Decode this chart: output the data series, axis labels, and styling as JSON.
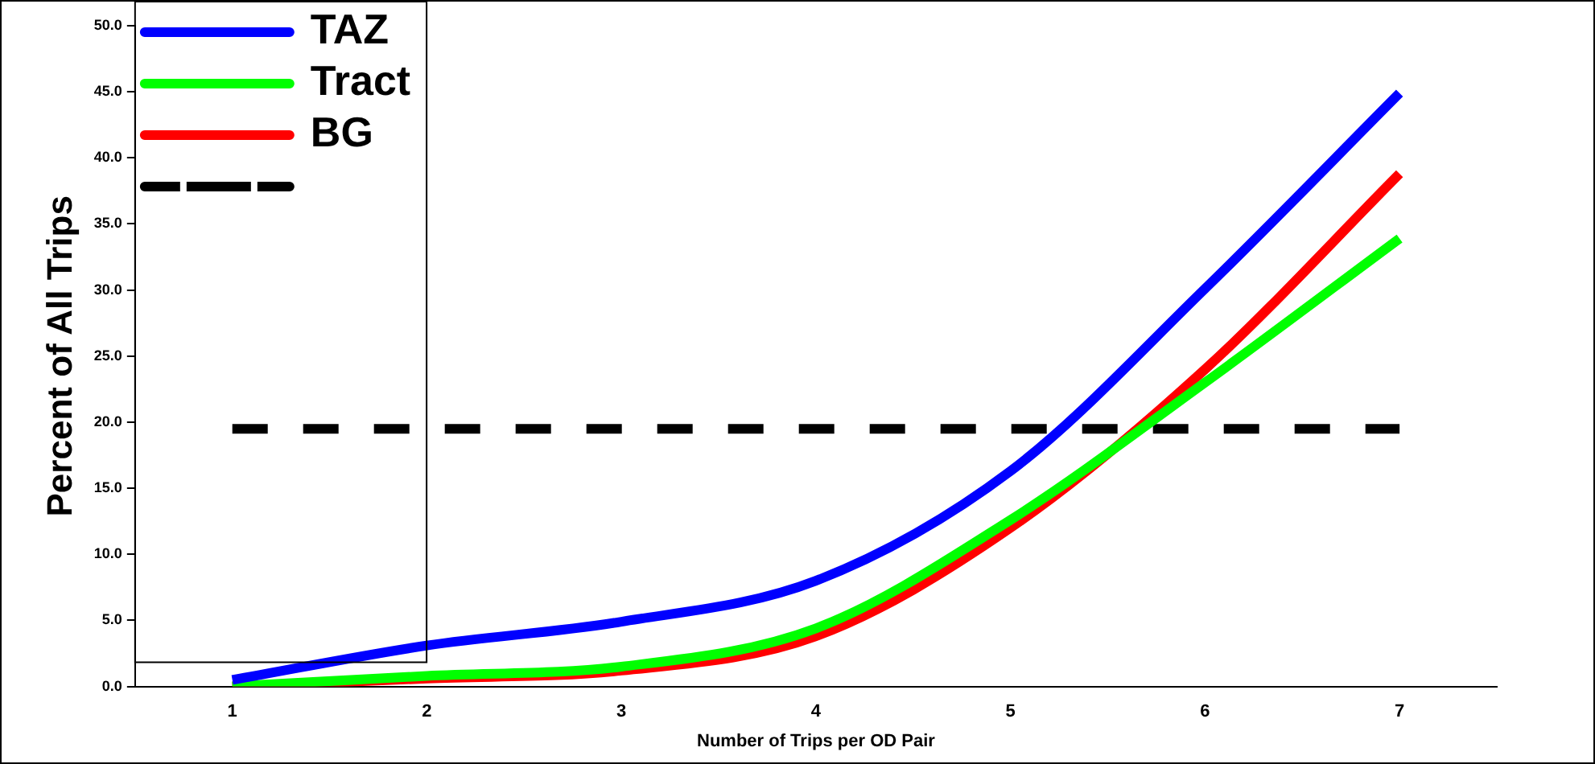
{
  "chart_data": {
    "type": "line",
    "xlabel": "Number of Trips per OD Pair",
    "ylabel": "Percent of All Trips",
    "categories": [
      "1",
      "2",
      "3",
      "4",
      "5",
      "6",
      "7"
    ],
    "series": [
      {
        "name": "TAZ",
        "color": "#0000ff",
        "values": [
          0.5,
          3.1,
          4.9,
          8.0,
          16.3,
          30.1,
          44.9
        ]
      },
      {
        "name": "Tract",
        "color": "#00ff00",
        "values": [
          0.0,
          0.8,
          1.5,
          4.4,
          12.6,
          23.0,
          33.9
        ]
      },
      {
        "name": "BG",
        "color": "#ff0000",
        "values": [
          0.0,
          0.6,
          1.2,
          3.8,
          12.0,
          24.0,
          38.8
        ]
      },
      {
        "color": "#000000",
        "values": [
          19.5,
          19.5,
          19.5,
          19.5,
          19.5,
          19.5,
          19.5
        ],
        "line_style": "dashed"
      }
    ],
    "ylim": [
      0,
      50
    ],
    "yticks": [
      {
        "value": 0,
        "label": "0.0"
      },
      {
        "value": 5,
        "label": "5.0"
      },
      {
        "value": 10,
        "label": "10.0"
      },
      {
        "value": 15,
        "label": "15.0"
      },
      {
        "value": 20,
        "label": "20.0"
      },
      {
        "value": 25,
        "label": "25.0"
      },
      {
        "value": 30,
        "label": "30.0"
      },
      {
        "value": 35,
        "label": "35.0"
      },
      {
        "value": 40,
        "label": "40.0"
      },
      {
        "value": 45,
        "label": "45.0"
      },
      {
        "value": 50,
        "label": "50.0"
      }
    ],
    "grid": false,
    "legend": "top left",
    "marker": "none",
    "line_style": "solid"
  }
}
